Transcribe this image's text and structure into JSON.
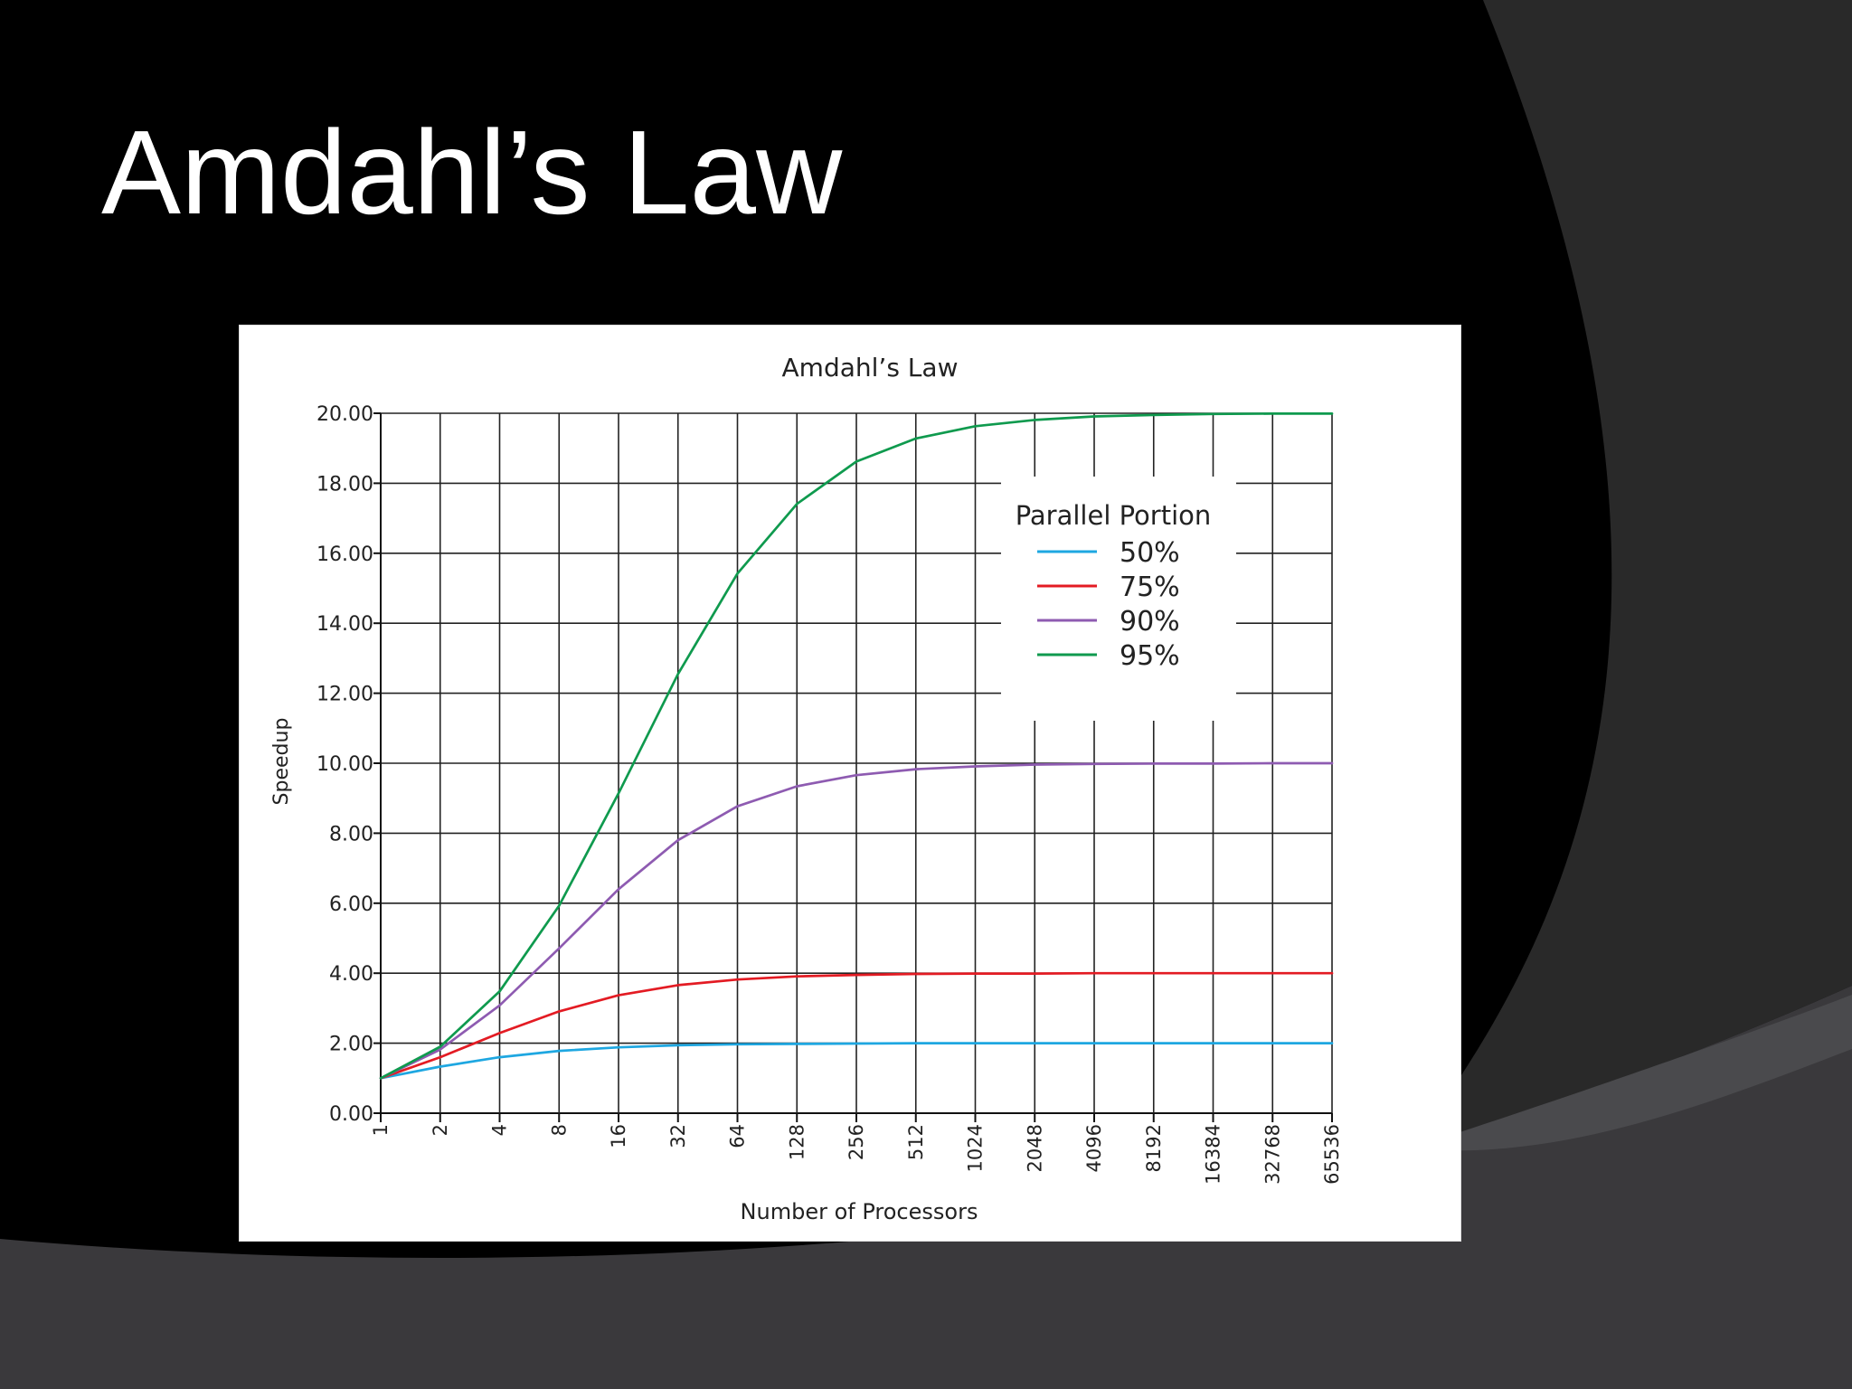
{
  "slide": {
    "title": "Amdahl’s Law"
  },
  "chart_data": {
    "type": "line",
    "title": "Amdahl’s Law",
    "xlabel": "Number of Processors",
    "ylabel": "Speedup",
    "x": [
      1,
      2,
      4,
      8,
      16,
      32,
      64,
      128,
      256,
      512,
      1024,
      2048,
      4096,
      8192,
      16384,
      32768,
      65536
    ],
    "x_tick_labels": [
      "1",
      "2",
      "4",
      "8",
      "16",
      "32",
      "64",
      "128",
      "256",
      "512",
      "1024",
      "2048",
      "4096",
      "8192",
      "16384",
      "32768",
      "65536"
    ],
    "x_scale": "log2",
    "y_tick_labels": [
      "0.00",
      "2.00",
      "4.00",
      "6.00",
      "8.00",
      "10.00",
      "12.00",
      "14.00",
      "16.00",
      "18.00",
      "20.00"
    ],
    "ylim": [
      0,
      20
    ],
    "grid": true,
    "legend": {
      "title": "Parallel Portion",
      "position": "upper-right"
    },
    "series": [
      {
        "name": "50%",
        "color": "#1ea7e1",
        "values": [
          1.0,
          1.33,
          1.6,
          1.78,
          1.88,
          1.94,
          1.97,
          1.98,
          1.99,
          2.0,
          2.0,
          2.0,
          2.0,
          2.0,
          2.0,
          2.0,
          2.0
        ]
      },
      {
        "name": "75%",
        "color": "#e31b23",
        "values": [
          1.0,
          1.6,
          2.29,
          2.91,
          3.37,
          3.66,
          3.82,
          3.91,
          3.95,
          3.98,
          3.99,
          3.99,
          4.0,
          4.0,
          4.0,
          4.0,
          4.0
        ]
      },
      {
        "name": "90%",
        "color": "#8e5bb1",
        "values": [
          1.0,
          1.82,
          3.08,
          4.71,
          6.4,
          7.8,
          8.77,
          9.34,
          9.66,
          9.83,
          9.91,
          9.96,
          9.98,
          9.99,
          9.99,
          10.0,
          10.0
        ]
      },
      {
        "name": "95%",
        "color": "#0f9a4e",
        "values": [
          1.0,
          1.9,
          3.48,
          5.93,
          9.14,
          12.55,
          15.42,
          17.41,
          18.62,
          19.28,
          19.63,
          19.81,
          19.91,
          19.95,
          19.98,
          19.99,
          19.99
        ]
      }
    ]
  }
}
